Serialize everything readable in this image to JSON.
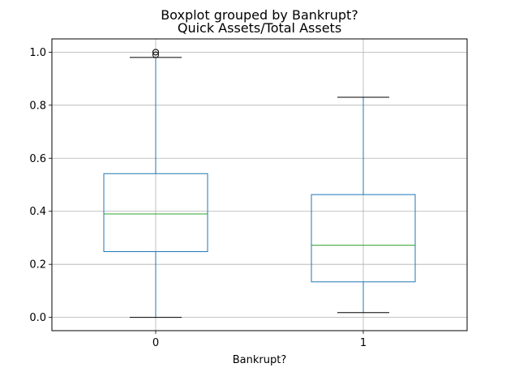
{
  "chart_data": {
    "type": "box",
    "title": "Boxplot grouped by Bankrupt?",
    "subtitle": "Quick Assets/Total Assets",
    "xlabel": "Bankrupt?",
    "ylabel": "",
    "ylim": [
      -0.05,
      1.05
    ],
    "yticks": [
      0.0,
      0.2,
      0.4,
      0.6,
      0.8,
      1.0
    ],
    "ytick_labels": [
      "0.0",
      "0.2",
      "0.4",
      "0.6",
      "0.8",
      "1.0"
    ],
    "grid": true,
    "categories": [
      "0",
      "1"
    ],
    "boxes": [
      {
        "category": "0",
        "whisker_low": 0.0,
        "q1": 0.248,
        "median": 0.39,
        "q3": 0.542,
        "whisker_high": 0.98,
        "outliers": [
          0.99,
          1.0
        ]
      },
      {
        "category": "1",
        "whisker_low": 0.018,
        "q1": 0.134,
        "median": 0.272,
        "q3": 0.463,
        "whisker_high": 0.83,
        "outliers": []
      }
    ],
    "colors": {
      "box": "#1f77b4",
      "median": "#2ca02c",
      "cap": "#000000",
      "grid": "#b0b0b0",
      "spine": "#000000"
    }
  }
}
